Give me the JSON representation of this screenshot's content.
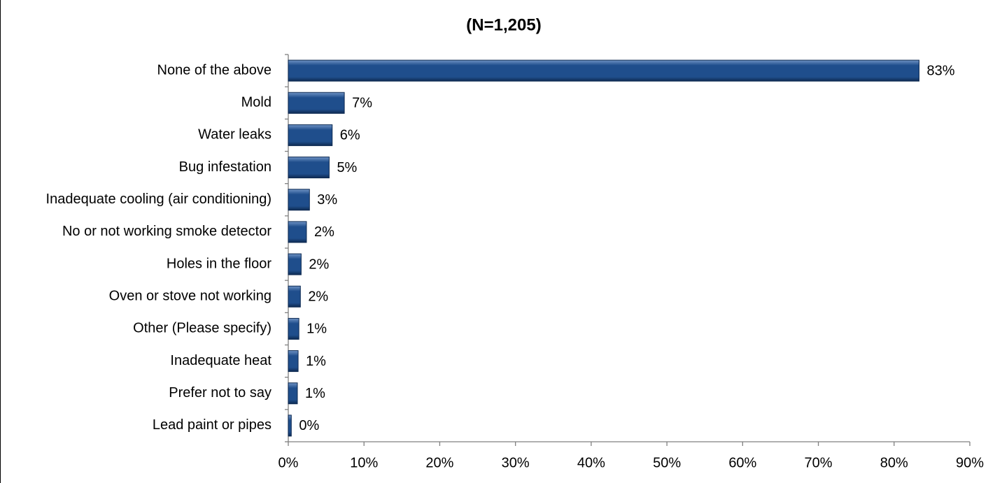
{
  "chart_data": {
    "type": "bar",
    "orientation": "horizontal",
    "title": "(N=1,205)",
    "categories": [
      "None of the above",
      "Mold",
      "Water leaks",
      "Bug infestation",
      "Inadequate cooling (air conditioning)",
      "No or not working smoke detector",
      "Holes in the floor",
      "Oven or stove not working",
      "Other (Please specify)",
      "Inadequate heat",
      "Prefer not to say",
      "Lead paint or pipes"
    ],
    "values": [
      83.3,
      7.4,
      5.8,
      5.4,
      2.8,
      2.4,
      1.7,
      1.6,
      1.4,
      1.3,
      1.2,
      0.4
    ],
    "value_labels": [
      "83%",
      "7%",
      "6%",
      "5%",
      "3%",
      "2%",
      "2%",
      "2%",
      "1%",
      "1%",
      "1%",
      "0%"
    ],
    "color": "#1f4e8c",
    "xlim": [
      0,
      90
    ],
    "xticks": [
      {
        "value": 0,
        "label": "0%"
      },
      {
        "value": 10,
        "label": "10%"
      },
      {
        "value": 20,
        "label": "20%"
      },
      {
        "value": 30,
        "label": "30%"
      },
      {
        "value": 40,
        "label": "40%"
      },
      {
        "value": 50,
        "label": "50%"
      },
      {
        "value": 60,
        "label": "60%"
      },
      {
        "value": 70,
        "label": "70%"
      },
      {
        "value": 80,
        "label": "80%"
      },
      {
        "value": 90,
        "label": "90%"
      }
    ],
    "grid": false
  }
}
